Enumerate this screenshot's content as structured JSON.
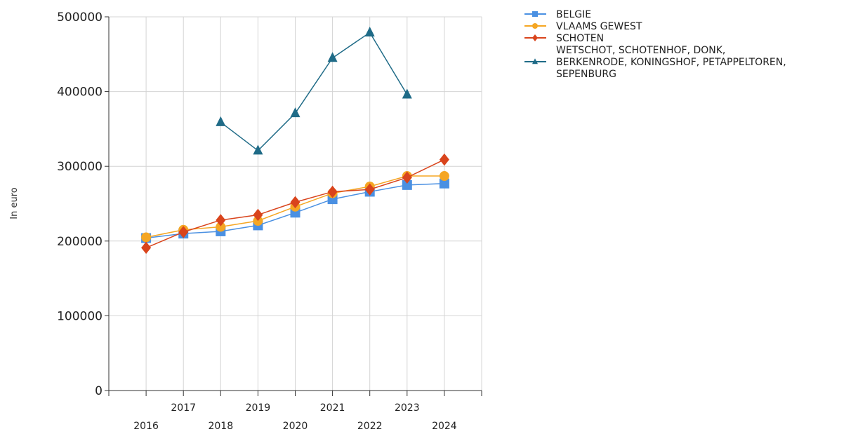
{
  "chart_data": {
    "type": "line",
    "title": "",
    "xlabel": "",
    "ylabel": "In euro",
    "x": [
      "2016",
      "2017",
      "2018",
      "2019",
      "2020",
      "2021",
      "2022",
      "2023",
      "2024"
    ],
    "y_ticks": [
      "0",
      "100000",
      "200000",
      "300000",
      "400000",
      "500000"
    ],
    "ylim": [
      0,
      500000
    ],
    "grid": true,
    "legend_position": "top-right",
    "series": [
      {
        "name": "BELGIE",
        "color": "#4a90e2",
        "marker": "square",
        "values": [
          204000,
          210000,
          213000,
          221000,
          238000,
          256000,
          266000,
          275000,
          277000
        ]
      },
      {
        "name": "VLAAMS GEWEST",
        "color": "#f5a623",
        "marker": "circle",
        "values": [
          205000,
          215000,
          219000,
          227000,
          246000,
          264000,
          273000,
          287000,
          287000
        ]
      },
      {
        "name": "SCHOTEN",
        "color": "#d9441c",
        "marker": "diamond",
        "values": [
          191000,
          212000,
          228000,
          235000,
          252000,
          266000,
          269000,
          285000,
          309000
        ]
      },
      {
        "name": "WETSCHOT, SCHOTENHOF, DONK, BERKENRODE, KONINGSHOF, PETAPPELTOREN, SEPENBURG",
        "legend_lines": [
          "WETSCHOT, SCHOTENHOF, DONK,",
          "BERKENRODE, KONINGSHOF, PETAPPELTOREN,",
          "SEPENBURG"
        ],
        "color": "#1f6b87",
        "marker": "triangle",
        "values": [
          null,
          null,
          359000,
          321000,
          371000,
          445000,
          479000,
          396000,
          null
        ]
      }
    ]
  }
}
